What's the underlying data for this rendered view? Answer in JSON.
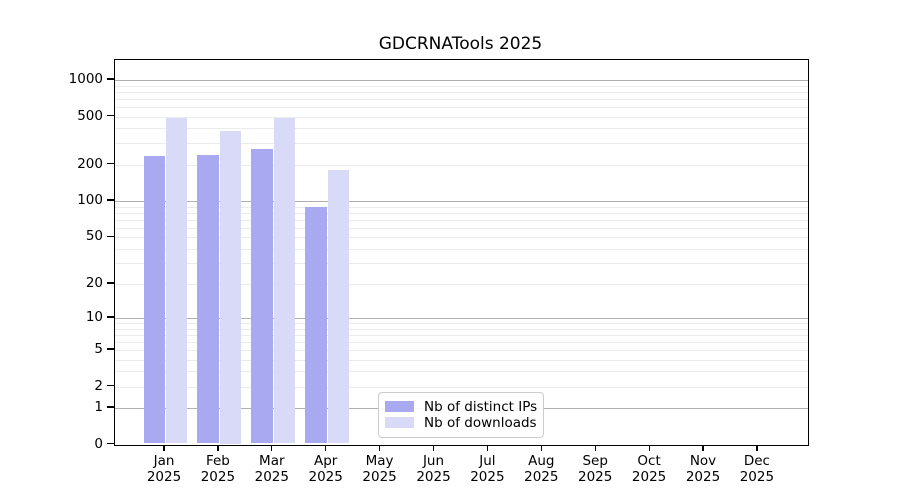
{
  "title": "GDCRNATools 2025",
  "chart_data": {
    "type": "bar",
    "title": "GDCRNATools 2025",
    "categories": [
      "Jan 2025",
      "Feb 2025",
      "Mar 2025",
      "Apr 2025",
      "May 2025",
      "Jun 2025",
      "Jul 2025",
      "Aug 2025",
      "Sep 2025",
      "Oct 2025",
      "Nov 2025",
      "Dec 2025"
    ],
    "series": [
      {
        "name": "Nb of distinct IPs",
        "color": "#a9a9f2",
        "values": [
          235,
          240,
          270,
          89,
          0,
          0,
          0,
          0,
          0,
          0,
          0,
          0
        ]
      },
      {
        "name": "Nb of downloads",
        "color": "#d9d9f8",
        "values": [
          490,
          380,
          490,
          180,
          0,
          0,
          0,
          0,
          0,
          0,
          0,
          0
        ]
      }
    ],
    "xlabel": "",
    "ylabel": "",
    "y_scale": "log1p",
    "y_ticks": [
      0,
      1,
      2,
      5,
      10,
      20,
      50,
      100,
      200,
      500,
      1000
    ],
    "major_gridline_values": [
      1,
      10,
      100,
      1000
    ],
    "minor_gridline_decades": [
      1,
      10,
      100
    ],
    "ylim": [
      0,
      1400
    ],
    "grid": true,
    "legend_position": "inside lower-center-left"
  },
  "colors": {
    "background": "#ffffff",
    "axis": "#000000",
    "major_grid": "#b0b0b0",
    "minor_grid": "#ebebeb",
    "series_distinct_ips": "#a9a9f2",
    "series_downloads": "#d9d9f8",
    "legend_border": "#cccccc"
  }
}
